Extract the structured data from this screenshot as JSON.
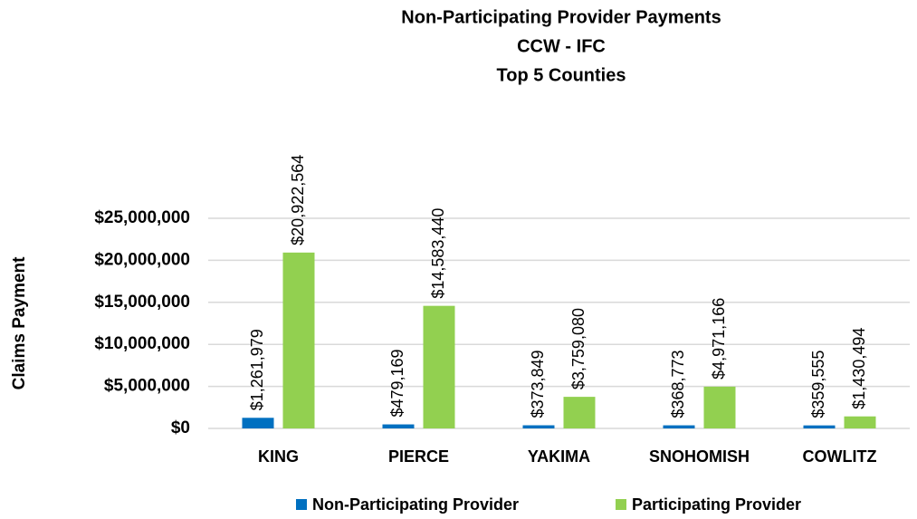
{
  "chart_data": {
    "type": "bar",
    "title": [
      "Non-Participating Provider Payments",
      "CCW - IFC",
      "Top 5 Counties"
    ],
    "y_label": "Claims Payment",
    "categories": [
      "KING",
      "PIERCE",
      "YAKIMA",
      "SNOHOMISH",
      "COWLITZ"
    ],
    "series": [
      {
        "name": "Non-Participating Provider",
        "color": "#0070C0",
        "values": [
          1261979,
          479169,
          373849,
          368773,
          359555
        ],
        "value_labels": [
          "$1,261,979",
          "$479,169",
          "$373,849",
          "$368,773",
          "$359,555"
        ]
      },
      {
        "name": "Participating Provider",
        "color": "#92D050",
        "values": [
          20922564,
          14583440,
          3759080,
          4971166,
          1430494
        ],
        "value_labels": [
          "$20,922,564",
          "$14,583,440",
          "$3,759,080",
          "$4,971,166",
          "$1,430,494"
        ]
      }
    ],
    "ylim": [
      0,
      25000000
    ],
    "yticks": [
      {
        "value": 0,
        "label": "$0"
      },
      {
        "value": 5000000,
        "label": "$5,000,000"
      },
      {
        "value": 10000000,
        "label": "$10,000,000"
      },
      {
        "value": 15000000,
        "label": "$15,000,000"
      },
      {
        "value": 20000000,
        "label": "$20,000,000"
      },
      {
        "value": 25000000,
        "label": "$25,000,000"
      }
    ],
    "grid": true,
    "legend": "bottom"
  }
}
